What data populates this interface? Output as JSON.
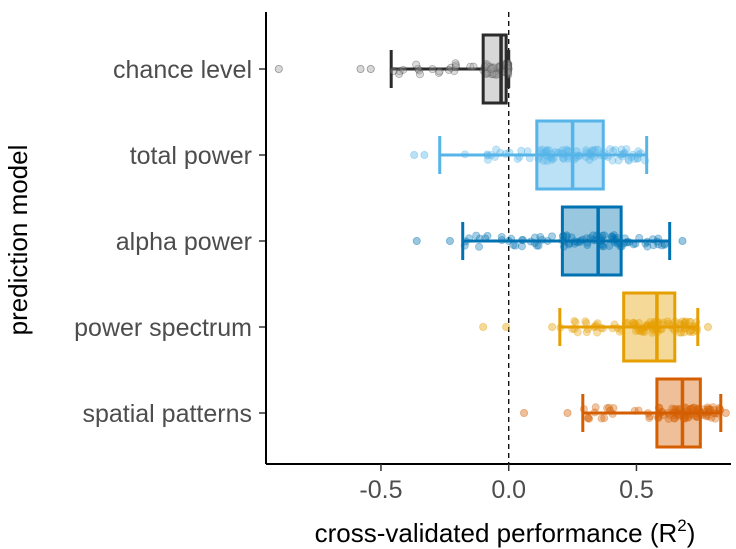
{
  "chart_data": {
    "type": "boxplot",
    "orientation": "horizontal",
    "xlabel": "cross-validated performance (R",
    "xlabel_sup": "2",
    "xlabel_close": ")",
    "ylabel": "prediction model",
    "xlim": [
      -0.95,
      0.87
    ],
    "xticks": [
      {
        "value": -0.5,
        "label": "-0.5"
      },
      {
        "value": 0.0,
        "label": "0.0"
      },
      {
        "value": 0.5,
        "label": "0.5"
      }
    ],
    "reference_line": 0,
    "grid": false,
    "legend": "none",
    "categories": [
      {
        "label": "chance level",
        "color": "#2b2b2b",
        "fill": "#9e9e9e",
        "whisker_low": -0.46,
        "q1": -0.1,
        "median": -0.03,
        "q3": -0.01,
        "whisker_high": 0.0,
        "outliers": [
          -0.9,
          -0.58,
          -0.54
        ]
      },
      {
        "label": "total power",
        "color": "#56b4e9",
        "fill": "#56b4e9",
        "whisker_low": -0.27,
        "q1": 0.11,
        "median": 0.25,
        "q3": 0.37,
        "whisker_high": 0.54,
        "outliers": [
          -0.37,
          -0.33
        ]
      },
      {
        "label": "alpha power",
        "color": "#0072b2",
        "fill": "#0072b2",
        "whisker_low": -0.18,
        "q1": 0.21,
        "median": 0.35,
        "q3": 0.44,
        "whisker_high": 0.63,
        "outliers": [
          -0.36,
          -0.23,
          0.68
        ]
      },
      {
        "label": "power spectrum",
        "color": "#e69f00",
        "fill": "#e69f00",
        "whisker_low": 0.2,
        "q1": 0.45,
        "median": 0.58,
        "q3": 0.65,
        "whisker_high": 0.74,
        "outliers": [
          -0.1,
          -0.01,
          0.17,
          0.78
        ]
      },
      {
        "label": "spatial patterns",
        "color": "#d55e00",
        "fill": "#d55e00",
        "whisker_low": 0.29,
        "q1": 0.58,
        "median": 0.68,
        "q3": 0.75,
        "whisker_high": 0.83,
        "outliers": [
          0.06,
          0.23,
          0.85
        ]
      }
    ]
  }
}
